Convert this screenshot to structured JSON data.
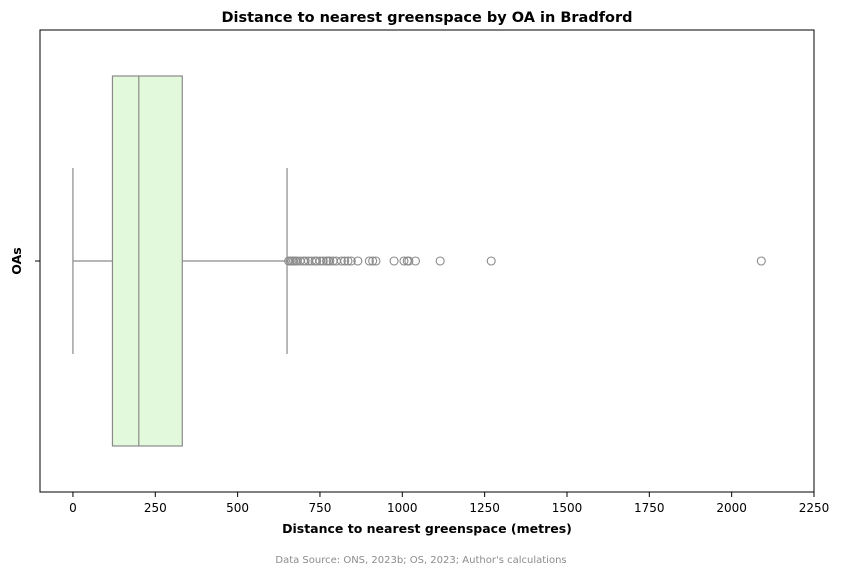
{
  "chart_data": {
    "type": "boxplot",
    "title": "Distance to nearest greenspace by OA in Bradford",
    "xlabel": "Distance to nearest greenspace (metres)",
    "ylabel": "OAs",
    "orientation": "horizontal",
    "xlim": [
      -100,
      2250
    ],
    "xticks": [
      0,
      250,
      500,
      750,
      1000,
      1250,
      1500,
      1750,
      2000,
      2250
    ],
    "grid": false,
    "legend": "none",
    "box": {
      "whisker_low": 0,
      "q1": 120,
      "median": 200,
      "q3": 332,
      "whisker_high": 650,
      "outliers": [
        655,
        660,
        665,
        670,
        675,
        680,
        690,
        700,
        705,
        715,
        725,
        735,
        740,
        750,
        760,
        770,
        775,
        780,
        790,
        800,
        815,
        825,
        835,
        845,
        865,
        900,
        910,
        920,
        975,
        1005,
        1015,
        1020,
        1040,
        1115,
        1270,
        2090
      ]
    },
    "colors": {
      "box_fill": "#e3f9dc",
      "line": "#8a8a8a",
      "outlier_edge": "#8a8a8a"
    }
  },
  "footer": {
    "source": "Data Source: ONS, 2023b; OS, 2023; Author's calculations"
  }
}
